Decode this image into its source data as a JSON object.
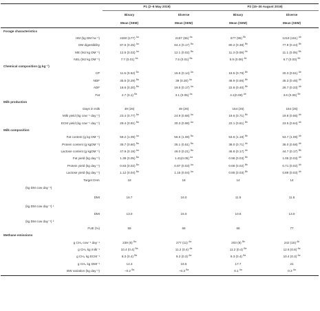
{
  "periods": {
    "p1": "P1 (2–8 May 2019)",
    "p2": "P2 (15–30 August 2019)"
  },
  "diets": [
    "Binary",
    "Diverse",
    "Binary",
    "Diverse"
  ],
  "mean_label": "Mean (SEM)",
  "sections": [
    {
      "title": "Forage characteristics",
      "rows": [
        {
          "label": "HM (kg DM ha⁻¹)",
          "cells": [
            [
              "2460 (177)",
              "Aa"
            ],
            [
              "2157 (65)",
              "Aa"
            ],
            [
              "677 (95)",
              "Bb"
            ],
            [
              "1218 (151)",
              "Ab"
            ]
          ]
        },
        {
          "label": "OM digestibility",
          "cells": [
            [
              "87.6 (0.25)",
              "Aa"
            ],
            [
              "84.4 (0.17)",
              "Ba"
            ],
            [
              "80.2 (0.38)",
              "Bb"
            ],
            [
              "77.9 (0.44)",
              "Bb"
            ]
          ]
        },
        {
          "label": "ME (MJ kg DM⁻¹)",
          "cells": [
            [
              "12.5 (0.03)",
              "Aa"
            ],
            [
              "12.1 (0.02)",
              "Ba"
            ],
            [
              "11.3 (0.09)",
              "Ab"
            ],
            [
              "11.1 (0.05)",
              "Bb"
            ]
          ]
        },
        {
          "label": "NEL (MJ kg DM⁻¹)",
          "cells": [
            [
              "7.7 (0.01)",
              "Aa"
            ],
            [
              "7.5 (0.01)",
              "Ba"
            ],
            [
              "6.9 (0.06)",
              "Ab"
            ],
            [
              "6.7 (0.03)",
              "Bb"
            ]
          ]
        }
      ]
    },
    {
      "title": "Chemical composition (g kg⁻¹)",
      "rows": [
        {
          "label": "CP",
          "cells": [
            [
              "11.5 (0.52)",
              "Ba"
            ],
            [
              "15.6 (0.14)",
              "Aa"
            ],
            [
              "19.5 (0.79)",
              "Bb"
            ],
            [
              "20.3 (0.51)",
              "Ab"
            ]
          ]
        },
        {
          "label": "NDF",
          "cells": [
            [
              "35.5 (0.29)",
              "Ba"
            ],
            [
              "39 (0.30)",
              "Aa"
            ],
            [
              "49.9 (0.66)",
              "Bb"
            ],
            [
              "45.3 (0.46)",
              "Ab"
            ]
          ]
        },
        {
          "label": "ADF",
          "cells": [
            [
              "18.6 (0.20)",
              "Ba"
            ],
            [
              "19.5 (0.17)",
              "Aa"
            ],
            [
              "22.8 (0.40)",
              "Bb"
            ],
            [
              "26.7 (0.33)",
              "Ab"
            ]
          ]
        },
        {
          "label": "Fat",
          "cells": [
            [
              "2.7 (0.1)",
              "Ba"
            ],
            [
              "3.1 (0.05)",
              "Aa"
            ],
            [
              "4.1(0.08)",
              "Ab"
            ],
            [
              "3.6 (0.06)",
              "Bb"
            ]
          ]
        }
      ]
    },
    {
      "title": "Milk production",
      "rows": [
        {
          "label": "Days in milk",
          "cells": [
            [
              "49 (26)",
              ""
            ],
            [
              "49 (26)",
              ""
            ],
            [
              "154 (26)",
              ""
            ],
            [
              "154 (26)",
              ""
            ]
          ]
        },
        {
          "label": "Milk yield (kg cow⁻¹ day⁻¹)",
          "cells": [
            [
              "23.4 (0.77)",
              "Ba"
            ],
            [
              "24.9 (0.68)",
              "Aa"
            ],
            [
              "19.6 (0.71)",
              "Bb"
            ],
            [
              "19.8 (0.66)",
              "Ab"
            ]
          ]
        },
        {
          "label": "ECM yield (kg cow⁻¹ day⁻¹)",
          "cells": [
            [
              "29.4 (0.91)",
              "Ba"
            ],
            [
              "30.3 (0.98)",
              "Aa"
            ],
            [
              "22.1 (0.61)",
              "Bb"
            ],
            [
              "23.5 (0.64)",
              "Ab"
            ]
          ]
        }
      ]
    },
    {
      "title": "Milk composition",
      "rows": [
        {
          "label": "Fat content (g kg DM⁻¹)",
          "cells": [
            [
              "59.2 (1.09)",
              "Aa"
            ],
            [
              "56.6 (1.08)",
              "Ba"
            ],
            [
              "53.6 (1.19)",
              "Bb"
            ],
            [
              "53.7 (1.08)",
              "Ab"
            ]
          ]
        },
        {
          "label": "Protein content (g kgDM⁻¹)",
          "cells": [
            [
              "35.7 (0.60)",
              "Ba"
            ],
            [
              "35.1 (0.51)",
              "Ba"
            ],
            [
              "38.0 (0.71)",
              "Ab"
            ],
            [
              "36.0 (0.58)",
              "Ab"
            ]
          ]
        },
        {
          "label": "Lactose content (g kgDM⁻¹)",
          "cells": [
            [
              "47.9 (0.19)",
              "Aa"
            ],
            [
              "46.0 (0.21)",
              "Ba"
            ],
            [
              "46.8 (0.17)",
              "Ab"
            ],
            [
              "44.7 (0.17)",
              "Bb"
            ]
          ]
        },
        {
          "label": "Fat yield (kg day⁻¹)",
          "cells": [
            [
              "1.38 (0.05)",
              "Ba"
            ],
            [
              "1.41(0.05)",
              "Aa"
            ],
            [
              "0.98 (0.03)",
              "Bb"
            ],
            [
              "1.05 (0.03)",
              "Ab"
            ]
          ]
        },
        {
          "label": "Protein yield (kg day⁻¹)",
          "cells": [
            [
              "0.83 (0.02)",
              "Ba"
            ],
            [
              "0.87 (0.03)",
              "Aa"
            ],
            [
              "0.68 (0.02)",
              "Bb"
            ],
            [
              "0.71 (0.02)",
              "Ab"
            ]
          ]
        },
        {
          "label": "Lactose yield (kg day⁻¹)",
          "cells": [
            [
              "1.12 (0.04)",
              "Ba"
            ],
            [
              "1.15 (0.04)",
              "Aa"
            ],
            [
              "0.85 (0.03)",
              "Bb"
            ],
            [
              "0.89 (0.03)",
              "Ab"
            ]
          ]
        },
        {
          "label": "Target DHA",
          "cells": [
            [
              "18",
              ""
            ],
            [
              "18",
              ""
            ],
            [
              "14",
              ""
            ],
            [
              "14",
              ""
            ]
          ]
        },
        {
          "label": "(kg DM cow day⁻¹)",
          "cells": [
            [
              "",
              ""
            ],
            [
              "",
              ""
            ],
            [
              "",
              ""
            ],
            [
              "",
              ""
            ]
          ],
          "left": true,
          "tall": true
        },
        {
          "label": "DMI",
          "cells": [
            [
              "16.7",
              ""
            ],
            [
              "16.0",
              ""
            ],
            [
              "11.5",
              ""
            ],
            [
              "11.5",
              ""
            ]
          ],
          "tall": true
        },
        {
          "label": "(kg DM cow day⁻¹) ¹",
          "cells": [
            [
              "",
              ""
            ],
            [
              "",
              ""
            ],
            [
              "",
              ""
            ],
            [
              "",
              ""
            ]
          ],
          "left": true,
          "tall": true
        },
        {
          "label": "DMI",
          "cells": [
            [
              "13.0",
              ""
            ],
            [
              "15.0",
              ""
            ],
            [
              "10.6",
              ""
            ],
            [
              "13.0",
              ""
            ]
          ]
        },
        {
          "label": "(kg DM cow day⁻¹) ²",
          "cells": [
            [
              "",
              ""
            ],
            [
              "",
              ""
            ],
            [
              "",
              ""
            ],
            [
              "",
              ""
            ]
          ],
          "left": true
        },
        {
          "label": "FUE (%)",
          "cells": [
            [
              "59",
              ""
            ],
            [
              "66",
              ""
            ],
            [
              "66",
              ""
            ],
            [
              "77",
              ""
            ]
          ]
        }
      ]
    },
    {
      "title": "Methane emissions",
      "rows": [
        {
          "label": "g CH₄ cow⁻¹ day⁻¹",
          "cells": [
            [
              "239 (6)",
              "Ba"
            ],
            [
              "277 (11)",
              "Aa"
            ],
            [
              "203 (8)",
              "Bb"
            ],
            [
              "242 (15)",
              "Ab"
            ]
          ]
        },
        {
          "label": "g CH₄ kg milk⁻¹",
          "cells": [
            [
              "10.4 (0.4)",
              "Ba"
            ],
            [
              "11.2 (0.4)",
              "Aa"
            ],
            [
              "11.2 (0.4)",
              "Ba"
            ],
            [
              "12.6 (0.8)",
              "Aa"
            ]
          ]
        },
        {
          "label": "g CH₄ kg ECM⁻¹",
          "cells": [
            [
              "8.3 (0.4)",
              "Ba"
            ],
            [
              "9.2 (0.3)",
              "Aa"
            ],
            [
              "9.3 (0.4)",
              "Ba"
            ],
            [
              "10.4 (0.3)",
              "Aa"
            ]
          ]
        },
        {
          "label": "g CH₄ kg DMI⁻¹",
          "cells": [
            [
              "14.3",
              ""
            ],
            [
              "16.5",
              ""
            ],
            [
              "17.7",
              ""
            ],
            [
              "21",
              ""
            ]
          ]
        },
        {
          "label": "BW variation (kg day⁻¹)",
          "cells": [
            [
              "−0.2",
              "Ba"
            ],
            [
              "−0.3",
              "Ba"
            ],
            [
              "0.1",
              "Aa"
            ],
            [
              "0.3",
              "Aa"
            ]
          ]
        }
      ]
    }
  ]
}
